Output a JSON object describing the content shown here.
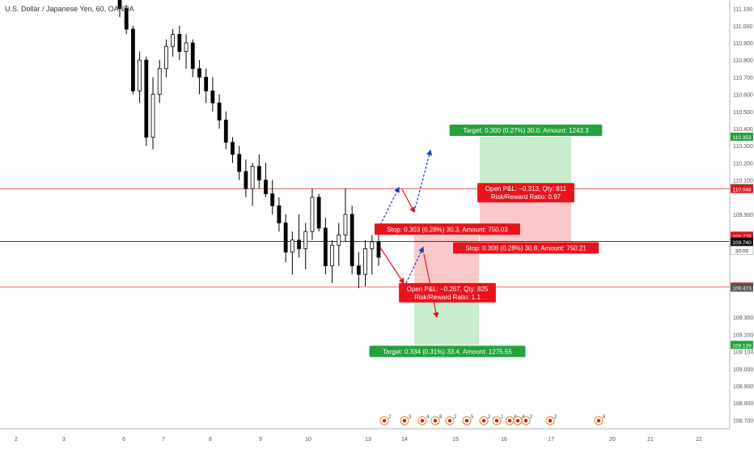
{
  "header": {
    "symbol_title": "U.S. Dollar / Japanese Yen, 60, OANDA"
  },
  "colors": {
    "up": "#26a69a",
    "down": "#ef5350",
    "candle": "#000000",
    "profit_zone": "#c8edcc",
    "loss_zone": "#f9c9c9",
    "red_line": "#e53935",
    "black_line": "#000000",
    "green_label": "#22a33a",
    "red_label": "#e8141b",
    "blue_arrow": "#1a3fb8"
  },
  "chart_data": {
    "type": "candlestick",
    "title": "U.S. Dollar / Japanese Yen, 60, OANDA",
    "ylim": [
      108.65,
      111.15
    ],
    "y_ticks": [
      "111.100",
      "111.000",
      "110.900",
      "110.800",
      "110.700",
      "110.600",
      "110.500",
      "110.400",
      "110.300",
      "110.200",
      "110.100",
      "109.900",
      "109.300",
      "109.200",
      "109.100",
      "109.000",
      "108.900",
      "108.800",
      "108.700"
    ],
    "x_ticks": [
      "2",
      "3",
      "6",
      "7",
      "8",
      "9",
      "10",
      "13",
      "14",
      "15",
      "16",
      "17",
      "20",
      "21",
      "22"
    ],
    "candles": [
      [
        111.2,
        111.22,
        111.05,
        111.1
      ],
      [
        111.1,
        111.12,
        110.95,
        110.98
      ],
      [
        110.98,
        111.0,
        110.6,
        110.62
      ],
      [
        110.62,
        110.85,
        110.55,
        110.8
      ],
      [
        110.8,
        110.82,
        110.3,
        110.35
      ],
      [
        110.35,
        110.7,
        110.28,
        110.6
      ],
      [
        110.6,
        110.8,
        110.55,
        110.75
      ],
      [
        110.75,
        110.92,
        110.7,
        110.88
      ],
      [
        110.88,
        110.98,
        110.82,
        110.95
      ],
      [
        110.95,
        111.0,
        110.8,
        110.85
      ],
      [
        110.85,
        110.95,
        110.75,
        110.9
      ],
      [
        110.9,
        110.92,
        110.7,
        110.75
      ],
      [
        110.75,
        110.8,
        110.6,
        110.7
      ],
      [
        110.7,
        110.75,
        110.55,
        110.62
      ],
      [
        110.62,
        110.7,
        110.5,
        110.55
      ],
      [
        110.55,
        110.6,
        110.4,
        110.45
      ],
      [
        110.45,
        110.5,
        110.28,
        110.32
      ],
      [
        110.32,
        110.35,
        110.2,
        110.25
      ],
      [
        110.25,
        110.3,
        110.1,
        110.15
      ],
      [
        110.15,
        110.22,
        110.0,
        110.05
      ],
      [
        110.05,
        110.2,
        109.95,
        110.18
      ],
      [
        110.18,
        110.25,
        110.05,
        110.1
      ],
      [
        110.1,
        110.2,
        110.0,
        110.02
      ],
      [
        110.02,
        110.1,
        109.9,
        109.95
      ],
      [
        109.95,
        110.0,
        109.8,
        109.85
      ],
      [
        109.85,
        109.9,
        109.62,
        109.68
      ],
      [
        109.68,
        109.8,
        109.55,
        109.75
      ],
      [
        109.75,
        109.9,
        109.65,
        109.7
      ],
      [
        109.7,
        109.85,
        109.58,
        109.8
      ],
      [
        109.8,
        110.05,
        109.75,
        110.0
      ],
      [
        110.0,
        110.02,
        109.8,
        109.82
      ],
      [
        109.82,
        109.88,
        109.55,
        109.6
      ],
      [
        109.6,
        109.75,
        109.5,
        109.72
      ],
      [
        109.72,
        109.85,
        109.6,
        109.78
      ],
      [
        109.78,
        110.05,
        109.74,
        109.9
      ],
      [
        109.9,
        109.95,
        109.55,
        109.6
      ],
      [
        109.6,
        109.68,
        109.47,
        109.55
      ],
      [
        109.55,
        109.75,
        109.48,
        109.7
      ],
      [
        109.7,
        109.78,
        109.55,
        109.74
      ],
      [
        109.74,
        109.8,
        109.6,
        109.65
      ]
    ],
    "levels": [
      {
        "label": "110.353",
        "value": 110.353,
        "style": "tag-green"
      },
      {
        "label": "110.053",
        "value": 110.053,
        "style": "tag-dark"
      },
      {
        "label": "110.048",
        "value": 110.048,
        "style": "tag-red"
      },
      {
        "label": "109.776",
        "value": 109.776,
        "style": "tag-red"
      },
      {
        "label": "109.745",
        "value": 109.745,
        "style": "tag-red"
      },
      {
        "label": "109.740",
        "value": 109.74,
        "style": "tag-black"
      },
      {
        "label": "30:00",
        "value": 109.69,
        "style": "tag-white"
      },
      {
        "label": "109.479",
        "value": 109.479,
        "style": "tag-red"
      },
      {
        "label": "109.473",
        "value": 109.473,
        "style": "tag-dark"
      },
      {
        "label": "109.139",
        "value": 109.139,
        "style": "tag-green"
      }
    ],
    "horizontal_lines": [
      {
        "value": 110.05,
        "color": "red"
      },
      {
        "value": 109.742,
        "color": "black"
      },
      {
        "value": 109.476,
        "color": "red"
      }
    ],
    "positions": [
      {
        "side": "short",
        "entry": 110.05,
        "stop": 109.742,
        "target": 110.353,
        "target_label": "Target: 0.300 (0.27%) 30.0, Amount: 1243.3",
        "stop_label": "Stop: 0.308 (0.28%) 30.8, Amount: 750.21",
        "pnl_label": "Open P&L: −0.313, Qty: 811",
        "rr_label": "Risk/Reward Ratio: 0.97"
      },
      {
        "side": "long",
        "entry": 109.476,
        "stop": 109.776,
        "target": 109.139,
        "target_label": "Target: 0.334 (0.31%) 33.4, Amount: 1275.55",
        "stop_label": "Stop: 0.303 (0.28%) 30.3, Amount: 750.03",
        "pnl_label": "Open P&L: −0.267, Qty: 825",
        "rr_label": "Risk/Reward Ratio: 1.1"
      }
    ],
    "event_markers": [
      "2",
      "3",
      "4",
      "8",
      "2",
      "5",
      "2",
      "1",
      "4",
      "4",
      "2",
      "2",
      "6"
    ]
  }
}
